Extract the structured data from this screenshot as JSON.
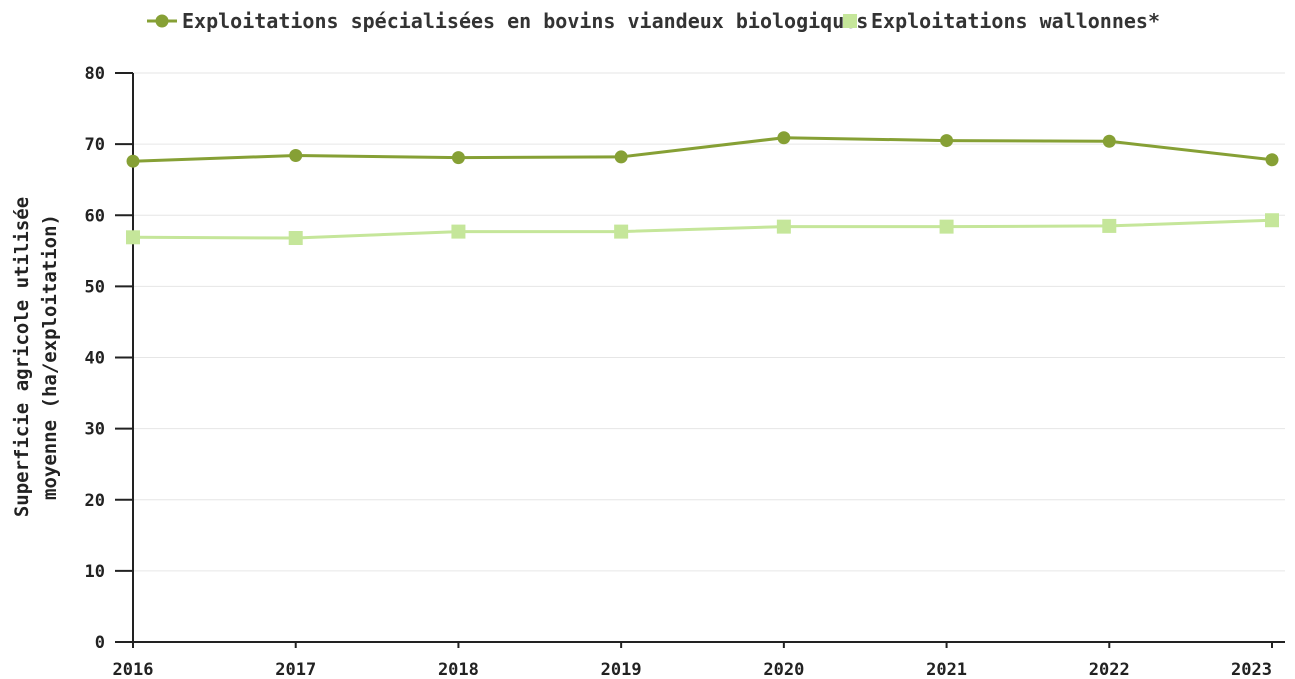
{
  "chart_data": {
    "type": "line",
    "x": [
      2016,
      2017,
      2018,
      2019,
      2020,
      2021,
      2022,
      2023
    ],
    "series": [
      {
        "name": "Exploitations spécialisées en bovins viandeux biologiques",
        "values": [
          67.6,
          68.4,
          68.1,
          68.2,
          70.9,
          70.5,
          70.4,
          67.8
        ],
        "color": "#86a035",
        "marker": "circle"
      },
      {
        "name": "Exploitations wallonnes*",
        "values": [
          56.9,
          56.8,
          57.7,
          57.7,
          58.4,
          58.4,
          58.5,
          59.3
        ],
        "color": "#c5e69a",
        "marker": "square"
      }
    ],
    "ylabel_lines": [
      "Superficie agricole utilisée",
      "moyenne (ha/exploitation)"
    ],
    "xlabel": "",
    "ylim": [
      0,
      80
    ],
    "yticks": [
      0,
      10,
      20,
      30,
      40,
      50,
      60,
      70,
      80
    ],
    "grid": true,
    "legend_position": "top"
  }
}
